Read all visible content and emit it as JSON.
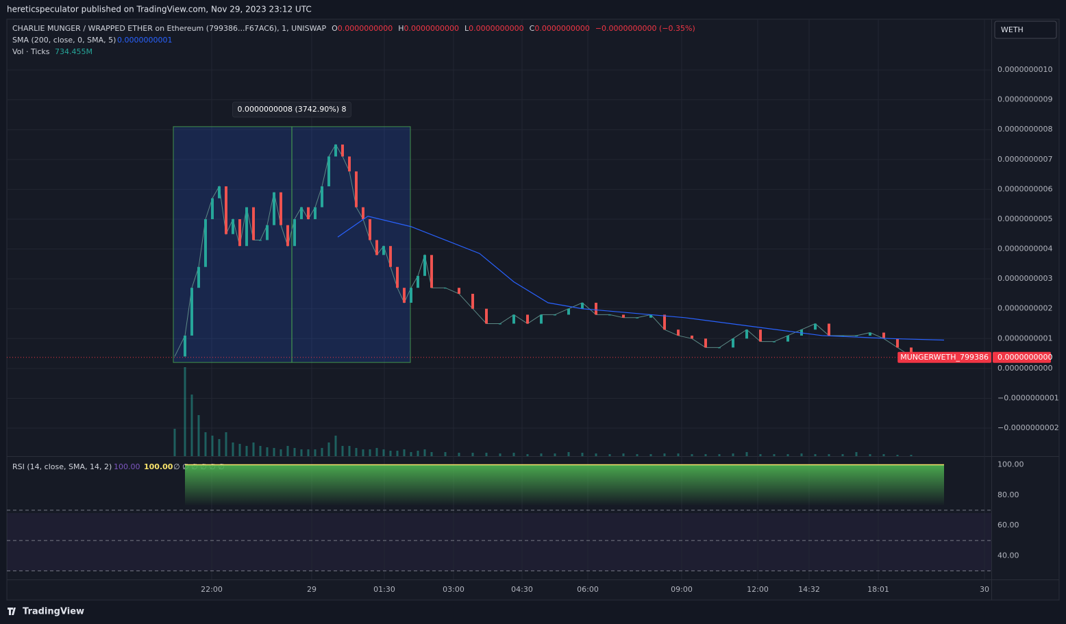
{
  "header": {
    "text": "hereticspeculator published on TradingView.com, Nov 29, 2023 23:12 UTC"
  },
  "symbol_button": "WETH",
  "legend": {
    "title": "CHARLIE MUNGER / WRAPPED ETHER on Ethereum (799386...F67AC6), 1, UNISWAP",
    "ohlc": [
      {
        "key": "O",
        "value": "0.0000000000"
      },
      {
        "key": "H",
        "value": "0.0000000000"
      },
      {
        "key": "L",
        "value": "0.0000000000"
      },
      {
        "key": "C",
        "value": "0.0000000000"
      }
    ],
    "change": "−0.0000000000 (−0.35%)",
    "sma": {
      "name": "SMA (200, close, 0, SMA, 5)",
      "value": "0.0000000001"
    },
    "volume": {
      "name": "Vol · Ticks",
      "value": "734.455M"
    },
    "rsi": {
      "name": "RSI (14, close, SMA, 14, 2)",
      "value1": "100.00",
      "value2": "100.00",
      "empty": "∅  ∅  ∅  ∅  ∅  ∅"
    }
  },
  "footer": "TradingView",
  "chart_data": {
    "type": "candlestick",
    "up_color": "#26a69a",
    "down_color": "#ef5350",
    "grid": true,
    "xlim": [
      0,
      143.7
    ],
    "xticks": [
      {
        "value": 29.9,
        "label": "22:00"
      },
      {
        "value": 44.5,
        "label": "29"
      },
      {
        "value": 55.1,
        "label": "01:30"
      },
      {
        "value": 65.2,
        "label": "03:00"
      },
      {
        "value": 75.2,
        "label": "04:30"
      },
      {
        "value": 84.8,
        "label": "06:00"
      },
      {
        "value": 98.5,
        "label": "09:00"
      },
      {
        "value": 109.6,
        "label": "12:00"
      },
      {
        "value": 117.1,
        "label": "14:32"
      },
      {
        "value": 127.2,
        "label": "18:01"
      },
      {
        "value": 142.7,
        "label": "30"
      }
    ],
    "ylim": [
      -2.94e-10,
      1.17e-09
    ],
    "yticks": [
      {
        "value": -2e-10,
        "label": "−0.0000000002"
      },
      {
        "value": -1e-10,
        "label": "−0.0000000001"
      },
      {
        "value": 0,
        "label": "0.0000000000"
      },
      {
        "value": 1e-10,
        "label": "0.0000000001"
      },
      {
        "value": 2e-10,
        "label": "0.0000000002"
      },
      {
        "value": 3e-10,
        "label": "0.0000000003"
      },
      {
        "value": 4e-10,
        "label": "0.0000000004"
      },
      {
        "value": 5e-10,
        "label": "0.0000000005"
      },
      {
        "value": 6e-10,
        "label": "0.0000000006"
      },
      {
        "value": 7e-10,
        "label": "0.0000000007"
      },
      {
        "value": 8e-10,
        "label": "0.0000000008"
      },
      {
        "value": 9e-10,
        "label": "0.0000000009"
      },
      {
        "value": 1e-09,
        "label": "0.0000000010"
      }
    ],
    "x": [
      24.5,
      26,
      27,
      28,
      29,
      30,
      31,
      32,
      33,
      34,
      35,
      36,
      37,
      38,
      39,
      40,
      41,
      42,
      43,
      44,
      45,
      46,
      47,
      48,
      49,
      50,
      51,
      52,
      53,
      54,
      55,
      56,
      57,
      58,
      59,
      60,
      61,
      62,
      64,
      66,
      68,
      70,
      72,
      74,
      76,
      78,
      80,
      82,
      84,
      86,
      88,
      90,
      92,
      94,
      96,
      98,
      100,
      102,
      104,
      106,
      108,
      110,
      112,
      114,
      116,
      118,
      120,
      122,
      124,
      126,
      128,
      130,
      132
    ],
    "values": [
      4e-11,
      1.1e-10,
      2.7e-10,
      3.4e-10,
      5e-10,
      5.7e-10,
      6.1e-10,
      4.5e-10,
      5e-10,
      4.1e-10,
      5.4e-10,
      4.3e-10,
      4.3e-10,
      4.8e-10,
      5.9e-10,
      4.8e-10,
      4.1e-10,
      5e-10,
      5.4e-10,
      5e-10,
      5.4e-10,
      6.1e-10,
      7.1e-10,
      7.5e-10,
      7.1e-10,
      6.6e-10,
      5.4e-10,
      5e-10,
      4.3e-10,
      3.8e-10,
      4.1e-10,
      3.4e-10,
      2.7e-10,
      2.2e-10,
      2.7e-10,
      3.1e-10,
      3.8e-10,
      2.7e-10,
      2.7e-10,
      2.5e-10,
      2e-10,
      1.5e-10,
      1.5e-10,
      1.8e-10,
      1.5e-10,
      1.8e-10,
      1.8e-10,
      2e-10,
      2.2e-10,
      1.8e-10,
      1.8e-10,
      1.7e-10,
      1.7e-10,
      1.8e-10,
      1.3e-10,
      1.1e-10,
      1e-10,
      7e-11,
      7e-11,
      1e-10,
      1.3e-10,
      9e-11,
      9e-11,
      1.1e-10,
      1.3e-10,
      1.5e-10,
      1.1e-10,
      1.1e-10,
      1.1e-10,
      1.2e-10,
      1e-10,
      7e-11,
      4e-11
    ],
    "sma": {
      "color": "#2962ff",
      "x": [
        48.3,
        52.7,
        59,
        64,
        69,
        74,
        79,
        84,
        89,
        99,
        109,
        119,
        129,
        136.8
      ],
      "values": [
        4.4e-10,
        5.1e-10,
        4.75e-10,
        4.3e-10,
        3.85e-10,
        2.9e-10,
        2.2e-10,
        2e-10,
        1.9e-10,
        1.7e-10,
        1.4e-10,
        1.1e-10,
        1e-10,
        9.5e-11
      ]
    },
    "volume": {
      "ylim": [
        0,
        1400
      ],
      "values": [
        400,
        1300,
        900,
        600,
        350,
        300,
        250,
        350,
        200,
        180,
        150,
        200,
        150,
        130,
        120,
        100,
        150,
        120,
        100,
        100,
        100,
        120,
        200,
        300,
        150,
        150,
        120,
        100,
        100,
        120,
        100,
        80,
        80,
        100,
        60,
        80,
        100,
        60,
        60,
        50,
        50,
        50,
        40,
        50,
        30,
        40,
        40,
        60,
        50,
        40,
        30,
        40,
        30,
        30,
        40,
        40,
        30,
        30,
        30,
        40,
        60,
        30,
        30,
        30,
        40,
        30,
        30,
        30,
        60,
        30,
        30,
        20,
        20
      ]
    },
    "measure": {
      "label": "0.0000000008 (3742.90%) 8",
      "x_range": [
        24.3,
        58.9
      ],
      "y_range": [
        2e-11,
        8.1e-10
      ]
    },
    "last_price": {
      "symbol": "MUNGERWETH_799386",
      "value": 3.7e-11,
      "label": "0.0000000000"
    },
    "rsi": {
      "color": "#f7e26b",
      "ylim": [
        24.3,
        105.2
      ],
      "yticks": [
        {
          "value": 40,
          "label": "40.00"
        },
        {
          "value": 60,
          "label": "60.00"
        },
        {
          "value": 80,
          "label": "80.00"
        },
        {
          "value": 100,
          "label": "100.00"
        }
      ],
      "bands": [
        70,
        50,
        30
      ],
      "x": [
        26,
        136.8
      ],
      "values": [
        100,
        100
      ]
    }
  }
}
